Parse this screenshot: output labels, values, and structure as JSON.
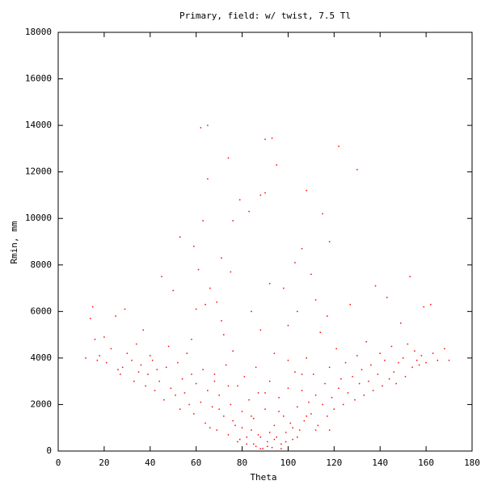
{
  "chart_data": {
    "type": "scatter",
    "title": "Primary, field: w/ twist, 7.5 Tl",
    "x_label": "Theta",
    "y_label": "Rmin, mm",
    "color": "#ff0000",
    "xlim": [
      0,
      180
    ],
    "xticks": [
      0,
      20,
      40,
      60,
      80,
      100,
      120,
      140,
      160,
      180
    ],
    "ylim": [
      0,
      18000
    ],
    "yticks": [
      0,
      2000,
      4000,
      6000,
      8000,
      10000,
      12000,
      14000,
      16000,
      18000
    ],
    "x": [
      12,
      14,
      15,
      16,
      17,
      18,
      20,
      21,
      23,
      25,
      26,
      27,
      28,
      29,
      30,
      32,
      33,
      34,
      35,
      36,
      37,
      38,
      39,
      40,
      41,
      42,
      43,
      44,
      45,
      46,
      47,
      48,
      49,
      50,
      51,
      52,
      53,
      54,
      55,
      56,
      57,
      58,
      59,
      60,
      61,
      62,
      63,
      64,
      65,
      66,
      67,
      68,
      69,
      70,
      71,
      72,
      73,
      74,
      75,
      76,
      77,
      78,
      79,
      80,
      81,
      82,
      83,
      84,
      85,
      86,
      87,
      88,
      89,
      90,
      91,
      92,
      93,
      94,
      95,
      96,
      97,
      98,
      99,
      100,
      101,
      102,
      103,
      104,
      105,
      106,
      107,
      108,
      109,
      110,
      111,
      112,
      113,
      114,
      115,
      116,
      117,
      118,
      119,
      120,
      121,
      122,
      123,
      124,
      125,
      126,
      127,
      128,
      129,
      130,
      131,
      132,
      133,
      134,
      135,
      136,
      137,
      138,
      139,
      140,
      141,
      142,
      143,
      144,
      145,
      146,
      147,
      148,
      149,
      150,
      151,
      152,
      153,
      154,
      155,
      156,
      157,
      158,
      159,
      160,
      162,
      163,
      165,
      168,
      170,
      62,
      65,
      90,
      93,
      122,
      130,
      95,
      74,
      65,
      90,
      88,
      108,
      79,
      83,
      115,
      76,
      63,
      53,
      118,
      106,
      59,
      78,
      82,
      85,
      88,
      91,
      94,
      97,
      99,
      92,
      87,
      80,
      84,
      90,
      96,
      102,
      104,
      76,
      70,
      66,
      108,
      112,
      68,
      74,
      86,
      94,
      100,
      106,
      118,
      60,
      64,
      69,
      75,
      84,
      98,
      104,
      110,
      112,
      117,
      72,
      58,
      88,
      100,
      103,
      92,
      71
    ],
    "values": [
      4000,
      5700,
      6200,
      4800,
      3900,
      4100,
      4900,
      3800,
      4400,
      5800,
      3500,
      3300,
      3600,
      6100,
      4200,
      3900,
      3000,
      4600,
      3400,
      3700,
      5200,
      2800,
      3300,
      4100,
      3900,
      2600,
      3500,
      3000,
      7500,
      2200,
      3600,
      4500,
      2700,
      6900,
      2400,
      3800,
      1800,
      3100,
      2500,
      4200,
      2000,
      3300,
      1600,
      2900,
      7800,
      2100,
      3500,
      1200,
      2600,
      7000,
      1900,
      3000,
      900,
      2400,
      5600,
      1500,
      3700,
      700,
      2000,
      4300,
      1100,
      2800,
      500,
      1700,
      3200,
      300,
      2200,
      900,
      1400,
      200,
      2500,
      600,
      100,
      1800,
      400,
      3000,
      150,
      1100,
      600,
      2300,
      300,
      1500,
      800,
      2700,
      1200,
      500,
      3400,
      1900,
      900,
      2600,
      1300,
      4000,
      2100,
      1600,
      3300,
      2400,
      1100,
      5100,
      2000,
      2900,
      1500,
      3600,
      2300,
      1800,
      4400,
      2700,
      3100,
      2000,
      3800,
      2500,
      6300,
      3200,
      2200,
      4100,
      2900,
      3500,
      2400,
      4700,
      3000,
      3700,
      2600,
      7100,
      3300,
      4200,
      2800,
      3900,
      6600,
      3100,
      4500,
      3400,
      2900,
      3800,
      5500,
      4000,
      3200,
      4600,
      7500,
      3600,
      4300,
      3900,
      3700,
      4100,
      6200,
      3800,
      6300,
      4200,
      3900,
      4400,
      3900,
      13900,
      14000,
      13400,
      13450,
      13100,
      12100,
      12300,
      12600,
      11700,
      11100,
      11000,
      11200,
      10800,
      10300,
      10200,
      9900,
      9900,
      9200,
      9000,
      8700,
      8800,
      400,
      600,
      300,
      100,
      200,
      500,
      100,
      400,
      800,
      700,
      1000,
      1500,
      2500,
      1700,
      1000,
      600,
      1300,
      1800,
      1000,
      1500,
      900,
      3300,
      2800,
      3600,
      4200,
      3900,
      3300,
      900,
      6100,
      6300,
      6400,
      7700,
      6000,
      7000,
      6000,
      7600,
      6500,
      5800,
      5000,
      4800,
      5200,
      5400,
      8100,
      7200,
      8300
    ]
  }
}
